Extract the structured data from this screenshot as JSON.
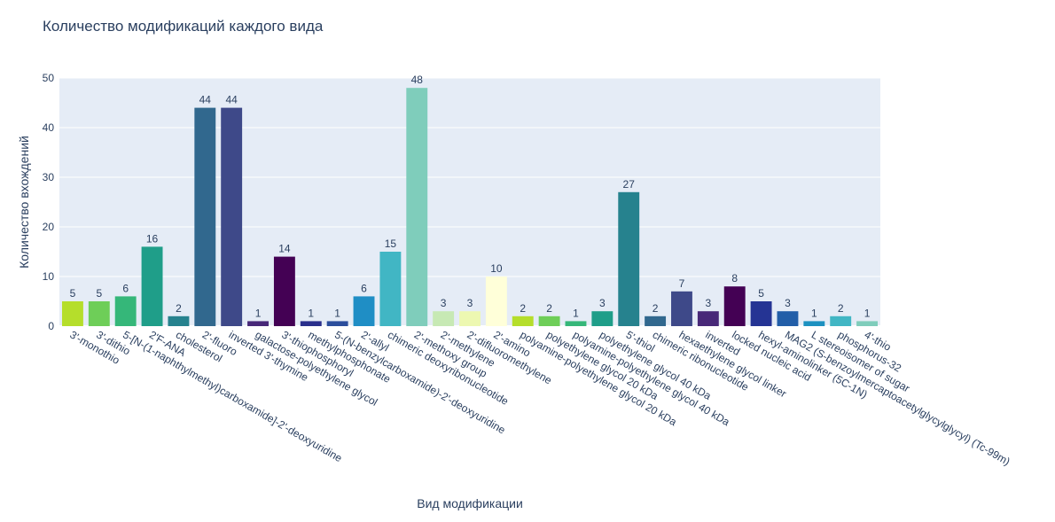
{
  "chart_data": {
    "type": "bar",
    "title": "Количество модификаций каждого вида",
    "xlabel": "Вид модификации",
    "ylabel": "Количество вхождений",
    "ylim": [
      0,
      50
    ],
    "yticks": [
      0,
      10,
      20,
      30,
      40,
      50
    ],
    "grid": true,
    "categories": [
      "3'-monothio",
      "3'-dithio",
      "5-[N-(1-naphthylmethyl)carboxamide]-2'-deoxyuridine",
      "2'F-ANA",
      "cholesterol",
      "2'-fluoro",
      "inverted 3'-thymine",
      "galactose-polyethylene glycol",
      "3'-thiophosphoryl",
      "methylphosphonate",
      "5-(N-benzylcarboxamide)-2'-deoxyuridine",
      "2'-allyl",
      "chimeric deoxyribonucleotide",
      "2'-methoxy group",
      "2'-methylene",
      "2'-difluoromethylene",
      "2'-amino",
      "polyamine-polyethylene glycol 20 kDa",
      "polyethylene glycol 20 kDa",
      "polyamine-polyethylene glycol 40 kDa",
      "polyethylene glycol 40 kDa",
      "5'-thiol",
      "chimeric ribonucleotide",
      "hexaethylene glycol linker",
      "inverted",
      "locked nucleic acid",
      "hexyl-aminolinker (5C-1N)",
      "MAG2 (S-benzoylmercaptoacetylglycylglycyl) (Tc-99m)",
      "L stereoisomer of sugar",
      "phosphorus-32",
      "4'-thio"
    ],
    "values": [
      5,
      5,
      6,
      16,
      2,
      44,
      44,
      1,
      14,
      1,
      1,
      6,
      15,
      48,
      3,
      3,
      10,
      2,
      2,
      1,
      3,
      27,
      2,
      7,
      3,
      8,
      5,
      3,
      1,
      2,
      1
    ],
    "colors": [
      "#b5de2b",
      "#6ece58",
      "#35b779",
      "#1f9e89",
      "#26828e",
      "#31688e",
      "#3e4989",
      "#482878",
      "#440154",
      "#2a2f8c",
      "#2c4e9c",
      "#1f8ec5",
      "#41b6c4",
      "#7fcdbb",
      "#c7e9b4",
      "#edf8b1",
      "#ffffd9",
      "#b5de2b",
      "#6ece58",
      "#35b779",
      "#1f9e89",
      "#26828e",
      "#31688e",
      "#3e4989",
      "#482878",
      "#440154",
      "#253494",
      "#225ea8",
      "#1d91c0",
      "#41b6c4",
      "#7fcdbb"
    ]
  }
}
